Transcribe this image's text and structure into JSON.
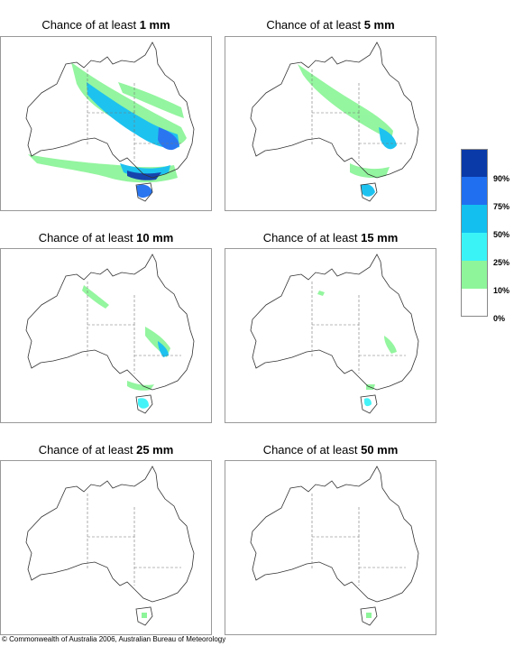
{
  "panels": [
    {
      "prefix": "Chance of at least ",
      "amount": "1 mm"
    },
    {
      "prefix": "Chance of at least ",
      "amount": "5 mm"
    },
    {
      "prefix": "Chance of at least ",
      "amount": "10 mm"
    },
    {
      "prefix": "Chance of at least ",
      "amount": "15 mm"
    },
    {
      "prefix": "Chance of at least ",
      "amount": "25 mm"
    },
    {
      "prefix": "Chance of at least ",
      "amount": "50 mm"
    }
  ],
  "legend": {
    "labels": [
      "90%",
      "75%",
      "50%",
      "25%",
      "10%",
      "0%"
    ],
    "colors": [
      "#0a3aa8",
      "#1f6ff0",
      "#12bfef",
      "#3af3f7",
      "#8ef59a",
      "#ffffff"
    ]
  },
  "footer": "© Commonwealth of Australia 2006, Australian Bureau of Meteorology"
}
